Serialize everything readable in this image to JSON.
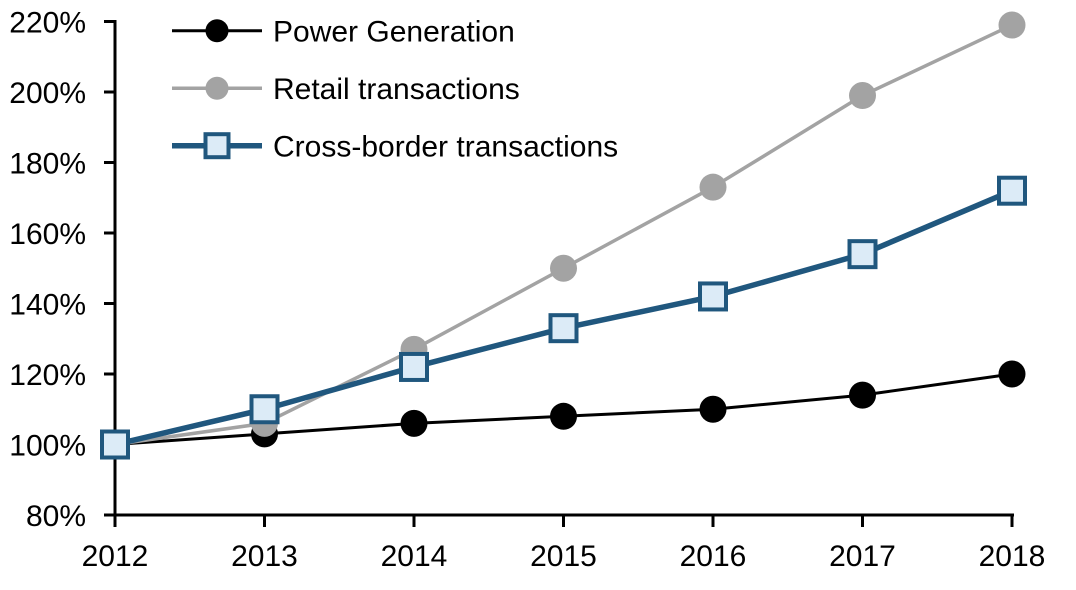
{
  "chart_data": {
    "type": "line",
    "title": "",
    "categories": [
      "2012",
      "2013",
      "2014",
      "2015",
      "2016",
      "2017",
      "2018"
    ],
    "series": [
      {
        "name": "Power Generation",
        "values": [
          100,
          103,
          106,
          108,
          110,
          114,
          120
        ],
        "color": "#000000",
        "marker": "circle",
        "marker_fill": "#000000",
        "line_width": 3
      },
      {
        "name": "Retail transactions",
        "values": [
          100,
          106,
          127,
          150,
          173,
          199,
          219
        ],
        "color": "#a3a3a3",
        "marker": "circle",
        "marker_fill": "#a3a3a3",
        "line_width": 3.5
      },
      {
        "name": "Cross-border transactions",
        "values": [
          100,
          110,
          122,
          133,
          142,
          154,
          172
        ],
        "color": "#20577e",
        "marker": "square",
        "marker_fill": "#dcebf7",
        "line_width": 5.5
      }
    ],
    "ylim": [
      80,
      220
    ],
    "yticks": [
      {
        "v": 80,
        "label": "80%"
      },
      {
        "v": 100,
        "label": "100%"
      },
      {
        "v": 120,
        "label": "120%"
      },
      {
        "v": 140,
        "label": "140%"
      },
      {
        "v": 160,
        "label": "160%"
      },
      {
        "v": 180,
        "label": "180%"
      },
      {
        "v": 200,
        "label": "200%"
      },
      {
        "v": 220,
        "label": "220%"
      }
    ],
    "xlabel": "",
    "ylabel": "",
    "grid": false,
    "legend_position": "top-left",
    "axis_color": "#000000"
  }
}
